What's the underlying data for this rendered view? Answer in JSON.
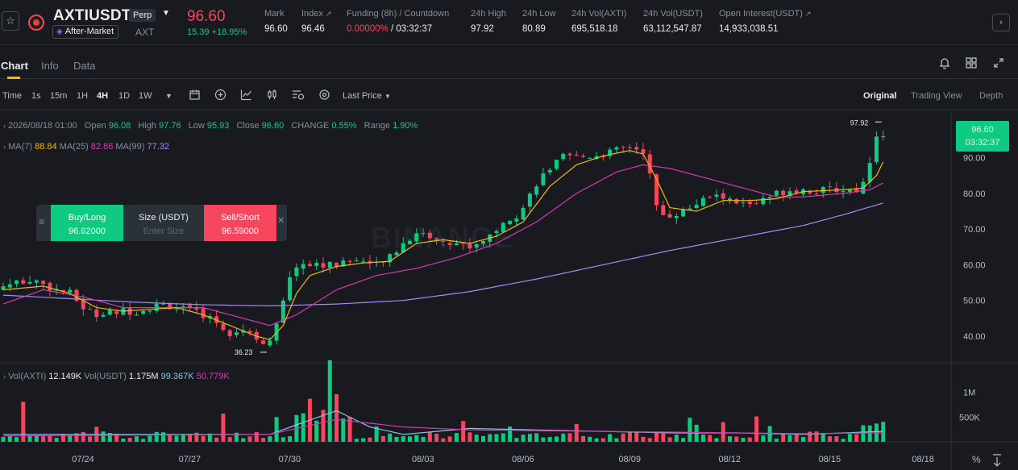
{
  "header": {
    "symbol": "AXTIUSDT",
    "contract_type": "Perp",
    "market_status": "After-Market",
    "base_asset": "AXT",
    "last_price": "96.60",
    "change_abs": "15.39",
    "change_pct": "+18.95%",
    "stats": [
      {
        "label": "Mark",
        "value": "96.60"
      },
      {
        "label": "Index",
        "value": "96.46"
      },
      {
        "label": "Funding (8h) / Countdown",
        "value_red": "0.00000%",
        "value": " / 03:32:37"
      },
      {
        "label": "24h High",
        "value": "97.92"
      },
      {
        "label": "24h Low",
        "value": "80.89"
      },
      {
        "label": "24h Vol(AXTI)",
        "value": "695,518.18"
      },
      {
        "label": "24h Vol(USDT)",
        "value": "63,112,547.87"
      },
      {
        "label": "Open Interest(USDT)",
        "value": "14,933,038.51"
      }
    ]
  },
  "tabs": [
    "Chart",
    "Info",
    "Data"
  ],
  "toolbar": {
    "intervals": [
      "Time",
      "1s",
      "15m",
      "1H",
      "4H",
      "1D",
      "1W"
    ],
    "active_interval": "4H",
    "price_type": "Last Price",
    "views": [
      "Original",
      "Trading View",
      "Depth"
    ],
    "active_view": "Original"
  },
  "legend": {
    "date": "2026/08/18 01:00",
    "open_label": "Open",
    "open": "96.08",
    "high_label": "High",
    "high": "97.76",
    "low_label": "Low",
    "low": "95.93",
    "close_label": "Close",
    "close": "96.60",
    "change_label": "CHANGE",
    "change": "0.55%",
    "range_label": "Range",
    "range": "1.90%",
    "ma7_label": "MA(7)",
    "ma7": "88.84",
    "ma25_label": "MA(25)",
    "ma25": "82.86",
    "ma99_label": "MA(99)",
    "ma99": "77.32",
    "vol_axti_label": "Vol(AXTI)",
    "vol_axti": "12.149K",
    "vol_usdt_label": "Vol(USDT)",
    "vol_usdt": "1.175M",
    "vol_ma1": "99.367K",
    "vol_ma2": "50.779K"
  },
  "price_tag": {
    "price": "96.60",
    "countdown": "03:32:37"
  },
  "order_widget": {
    "buy_label": "Buy/Long",
    "buy_price": "96.62000",
    "size_label": "Size (USDT)",
    "size_placeholder": "Enter Size",
    "sell_label": "Sell/Short",
    "sell_price": "96.59000"
  },
  "watermark": "BINANCE",
  "bottom_icons": {
    "percent": "%"
  },
  "colors": {
    "up": "#0ecb81",
    "down": "#f6465d",
    "ma7": "#f0b90b",
    "ma25": "#d63ab0",
    "ma99": "#a58af5",
    "vol_ma1": "#7ec8e3",
    "vol_ma2": "#d63ab0"
  },
  "chart_data": {
    "type": "candlestick",
    "price_axis": {
      "ticks": [
        "90.00",
        "80.00",
        "70.00",
        "60.00",
        "50.00",
        "40.00"
      ],
      "tick_values": [
        90,
        80,
        70,
        60,
        50,
        40
      ],
      "range": [
        33,
        103
      ]
    },
    "volume_axis": {
      "ticks": [
        "1M",
        "500K"
      ]
    },
    "x_ticks": [
      "07/24",
      "07/27",
      "07/30",
      "08/03",
      "08/06",
      "08/09",
      "08/12",
      "08/15",
      "08/18"
    ],
    "annotations": {
      "high_label": "97.92",
      "low_label": "36.23"
    },
    "close_path": [
      [
        0,
        54
      ],
      [
        4,
        56
      ],
      [
        8,
        53
      ],
      [
        10,
        52
      ],
      [
        12,
        48
      ],
      [
        14,
        46
      ],
      [
        16,
        46.5
      ],
      [
        18,
        47
      ],
      [
        20,
        47
      ],
      [
        22,
        48
      ],
      [
        24,
        49
      ],
      [
        26,
        48
      ],
      [
        28,
        47
      ],
      [
        30,
        46
      ],
      [
        32,
        44
      ],
      [
        34,
        41
      ],
      [
        36,
        42
      ],
      [
        38,
        40
      ],
      [
        39,
        38
      ],
      [
        40,
        38
      ],
      [
        41,
        43
      ],
      [
        42,
        49
      ],
      [
        43,
        56
      ],
      [
        44,
        60
      ],
      [
        46,
        60
      ],
      [
        48,
        60
      ],
      [
        50,
        60
      ],
      [
        52,
        61
      ],
      [
        54,
        61
      ],
      [
        56,
        60
      ],
      [
        58,
        62
      ],
      [
        60,
        66
      ],
      [
        62,
        69
      ],
      [
        64,
        68
      ],
      [
        66,
        66
      ],
      [
        68,
        66
      ],
      [
        70,
        65
      ],
      [
        72,
        67
      ],
      [
        74,
        70
      ],
      [
        76,
        72
      ],
      [
        78,
        76
      ],
      [
        80,
        83
      ],
      [
        82,
        87
      ],
      [
        84,
        90
      ],
      [
        86,
        90
      ],
      [
        88,
        90.5
      ],
      [
        90,
        91
      ],
      [
        92,
        92
      ],
      [
        94,
        93
      ],
      [
        96,
        92
      ],
      [
        97,
        85
      ],
      [
        98,
        76
      ],
      [
        99,
        74
      ],
      [
        100,
        74
      ],
      [
        102,
        75
      ],
      [
        104,
        77
      ],
      [
        106,
        79
      ],
      [
        108,
        79
      ],
      [
        110,
        77
      ],
      [
        112,
        77
      ],
      [
        114,
        78
      ],
      [
        116,
        80
      ],
      [
        118,
        81
      ],
      [
        120,
        81
      ],
      [
        122,
        80.5
      ],
      [
        124,
        81
      ],
      [
        126,
        81
      ],
      [
        128,
        81
      ],
      [
        129,
        83
      ],
      [
        130,
        88
      ],
      [
        131,
        95
      ],
      [
        132,
        96.6
      ]
    ],
    "ma7_path": [
      [
        0,
        53
      ],
      [
        6,
        54
      ],
      [
        10,
        52
      ],
      [
        14,
        48
      ],
      [
        18,
        47
      ],
      [
        22,
        47.5
      ],
      [
        26,
        48
      ],
      [
        30,
        46
      ],
      [
        34,
        43
      ],
      [
        38,
        40
      ],
      [
        40,
        39
      ],
      [
        42,
        43
      ],
      [
        44,
        52
      ],
      [
        46,
        57
      ],
      [
        50,
        59.5
      ],
      [
        54,
        60.5
      ],
      [
        58,
        61
      ],
      [
        62,
        66
      ],
      [
        66,
        67
      ],
      [
        70,
        66
      ],
      [
        74,
        68
      ],
      [
        78,
        72
      ],
      [
        82,
        82
      ],
      [
        86,
        88
      ],
      [
        90,
        90.5
      ],
      [
        94,
        92
      ],
      [
        96,
        91
      ],
      [
        98,
        84
      ],
      [
        100,
        76
      ],
      [
        104,
        75
      ],
      [
        108,
        78
      ],
      [
        112,
        78
      ],
      [
        116,
        78.5
      ],
      [
        120,
        80.5
      ],
      [
        126,
        81
      ],
      [
        129,
        81.5
      ],
      [
        131,
        85
      ],
      [
        132,
        88.8
      ]
    ],
    "ma25_path": [
      [
        0,
        49
      ],
      [
        6,
        53
      ],
      [
        12,
        51
      ],
      [
        18,
        48
      ],
      [
        24,
        48
      ],
      [
        30,
        48
      ],
      [
        36,
        45
      ],
      [
        40,
        43
      ],
      [
        44,
        46
      ],
      [
        50,
        53
      ],
      [
        56,
        57
      ],
      [
        62,
        59
      ],
      [
        68,
        62
      ],
      [
        74,
        66
      ],
      [
        80,
        72
      ],
      [
        86,
        80
      ],
      [
        92,
        86
      ],
      [
        96,
        88
      ],
      [
        100,
        87
      ],
      [
        106,
        84
      ],
      [
        112,
        81
      ],
      [
        116,
        79
      ],
      [
        120,
        79
      ],
      [
        126,
        80
      ],
      [
        130,
        81
      ],
      [
        132,
        82.9
      ]
    ],
    "ma99_path": [
      [
        0,
        51.5
      ],
      [
        10,
        50.5
      ],
      [
        20,
        49.5
      ],
      [
        30,
        48.8
      ],
      [
        40,
        48.5
      ],
      [
        50,
        49
      ],
      [
        60,
        50
      ],
      [
        70,
        52.5
      ],
      [
        80,
        56
      ],
      [
        90,
        60
      ],
      [
        100,
        64
      ],
      [
        110,
        67.5
      ],
      [
        120,
        71
      ],
      [
        126,
        74
      ],
      [
        132,
        77.3
      ]
    ],
    "vol_ma1_path": [
      [
        0,
        0.1
      ],
      [
        20,
        0.1
      ],
      [
        40,
        0.1
      ],
      [
        50,
        0.42
      ],
      [
        55,
        0.2
      ],
      [
        60,
        0.1
      ],
      [
        70,
        0.18
      ],
      [
        80,
        0.16
      ],
      [
        90,
        0.14
      ],
      [
        100,
        0.12
      ],
      [
        110,
        0.12
      ],
      [
        120,
        0.1
      ],
      [
        132,
        0.14
      ]
    ],
    "vol_ma2_path": [
      [
        0,
        0.08
      ],
      [
        20,
        0.09
      ],
      [
        40,
        0.1
      ],
      [
        50,
        0.3
      ],
      [
        60,
        0.2
      ],
      [
        70,
        0.16
      ],
      [
        80,
        0.15
      ],
      [
        90,
        0.14
      ],
      [
        100,
        0.13
      ],
      [
        110,
        0.12
      ],
      [
        120,
        0.11
      ],
      [
        132,
        0.12
      ]
    ]
  }
}
